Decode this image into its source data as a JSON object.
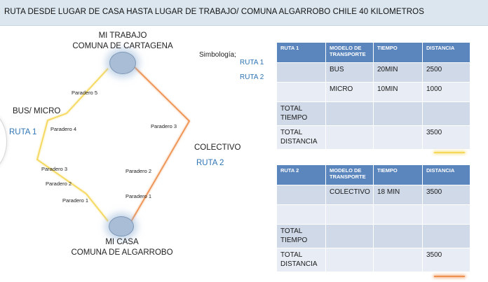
{
  "title": "RUTA DESDE LUGAR DE CASA HASTA LUGAR DE TRABAJO/ COMUNA ALGARROBO CHILE  40 KILOMETROS",
  "colors": {
    "ruta1": "#f5d75a",
    "ruta2": "#ee9150",
    "node": "#a9bed6",
    "label_blue": "#2e74b5",
    "table_header": "#5b86bd"
  },
  "diagram": {
    "work": {
      "line1": "MI TRABAJO",
      "line2": "COMUNA DE CARTAGENA"
    },
    "home": {
      "line1": "MI CASA",
      "line2": "COMUNA DE ALGARROBO"
    },
    "route1": {
      "mode_label": "BUS/ MICRO",
      "name": "RUTA 1",
      "stops": [
        "Paradero 1",
        "Paradero 2",
        "Paradero 3",
        "Paradero 4",
        "Paradero 5"
      ]
    },
    "route2": {
      "mode_label": "COLECTIVO",
      "name": "RUTA 2",
      "stops": [
        "Paradero 1",
        "Paradero 2",
        "Paradero 3"
      ]
    }
  },
  "legend": {
    "title": "Simbología;",
    "items": [
      "RUTA 1",
      "RUTA 2"
    ]
  },
  "tables": [
    {
      "headers": [
        "RUTA 1",
        "MODELO DE TRANSPORTE",
        "TIEMPO",
        "DISTANCIA"
      ],
      "rows": [
        [
          "",
          "BUS",
          "20MIN",
          "2500"
        ],
        [
          "",
          "MICRO",
          "10MIN",
          "1000"
        ],
        [
          "TOTAL TIEMPO",
          "",
          "",
          ""
        ],
        [
          "TOTAL DISTANCIA",
          "",
          "",
          "3500"
        ]
      ]
    },
    {
      "headers": [
        "RUTA 2",
        "MODELO DE TRANSPORTE",
        "TIEMPO",
        "DISTANCIA"
      ],
      "rows": [
        [
          "",
          "COLECTIVO",
          "18 MIN",
          "3500"
        ],
        [
          "",
          "",
          "",
          ""
        ],
        [
          "TOTAL TIEMPO",
          "",
          "",
          ""
        ],
        [
          "TOTAL DISTANCIA",
          "",
          "",
          "3500"
        ]
      ]
    }
  ]
}
